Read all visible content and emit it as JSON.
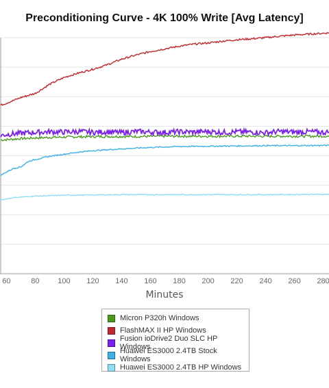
{
  "chart_data": {
    "type": "line",
    "title": "Preconditioning Curve - 4K 100% Write [Avg Latency]",
    "xlabel": "Minutes",
    "ylabel": "",
    "x_ticks": [
      60,
      80,
      100,
      120,
      140,
      160,
      180,
      200,
      220,
      240,
      260,
      280
    ],
    "x_tick_labels": [
      "60",
      "80",
      "100",
      "120",
      "140",
      "160",
      "180",
      "200",
      "220",
      "240",
      "260",
      "280"
    ],
    "xlim": [
      56,
      284
    ],
    "ylim": [
      0,
      8
    ],
    "y_gridlines": [
      0,
      1,
      2,
      3,
      4,
      5,
      6,
      7,
      8
    ],
    "grid": true,
    "legend_position": "bottom",
    "series": [
      {
        "name": "Micron P320h Windows",
        "color": "#4a9a1e",
        "x": [
          56,
          70,
          90,
          110,
          130,
          150,
          170,
          190,
          210,
          230,
          250,
          270,
          284
        ],
        "y": [
          4.53,
          4.58,
          4.62,
          4.64,
          4.65,
          4.65,
          4.66,
          4.66,
          4.66,
          4.66,
          4.66,
          4.66,
          4.66
        ]
      },
      {
        "name": "FlashMAX II HP Windows",
        "color": "#c0282d",
        "x": [
          56,
          60,
          70,
          80,
          90,
          100,
          110,
          120,
          130,
          140,
          150,
          160,
          170,
          180,
          190,
          200,
          210,
          220,
          230,
          240,
          250,
          260,
          270,
          284
        ],
        "y": [
          5.71,
          5.78,
          5.97,
          6.11,
          6.42,
          6.65,
          6.8,
          6.93,
          7.08,
          7.27,
          7.41,
          7.53,
          7.62,
          7.71,
          7.78,
          7.82,
          7.88,
          7.93,
          7.96,
          8.0,
          8.05,
          8.09,
          8.12,
          8.16
        ]
      },
      {
        "name": "Fusion ioDrive2 Duo SLC HP Windows",
        "color": "#7a1ff0",
        "x": [
          56,
          60,
          70,
          80,
          90,
          100,
          110,
          120,
          130,
          140,
          150,
          160,
          170,
          180,
          190,
          200,
          210,
          220,
          230,
          240,
          250,
          260,
          270,
          280,
          284
        ],
        "y": [
          4.68,
          4.72,
          4.76,
          4.79,
          4.81,
          4.8,
          4.82,
          4.79,
          4.81,
          4.78,
          4.82,
          4.8,
          4.79,
          4.81,
          4.8,
          4.82,
          4.79,
          4.81,
          4.8,
          4.78,
          4.82,
          4.8,
          4.81,
          4.79,
          4.8
        ]
      },
      {
        "name": "Huawei ES3000 2.4TB Stock Windows",
        "color": "#3fb0e6",
        "x": [
          56,
          60,
          65,
          70,
          75,
          80,
          90,
          100,
          110,
          120,
          140,
          160,
          180,
          200,
          220,
          240,
          260,
          284
        ],
        "y": [
          3.33,
          3.45,
          3.57,
          3.62,
          3.8,
          3.87,
          3.98,
          4.05,
          4.12,
          4.17,
          4.23,
          4.28,
          4.31,
          4.32,
          4.33,
          4.34,
          4.34,
          4.35
        ]
      },
      {
        "name": "Huawei ES3000 2.4TB HP Windows",
        "color": "#8fdcf5",
        "x": [
          56,
          65,
          80,
          100,
          120,
          140,
          160,
          200,
          240,
          284
        ],
        "y": [
          2.5,
          2.58,
          2.63,
          2.66,
          2.67,
          2.68,
          2.68,
          2.68,
          2.68,
          2.69
        ]
      }
    ]
  }
}
